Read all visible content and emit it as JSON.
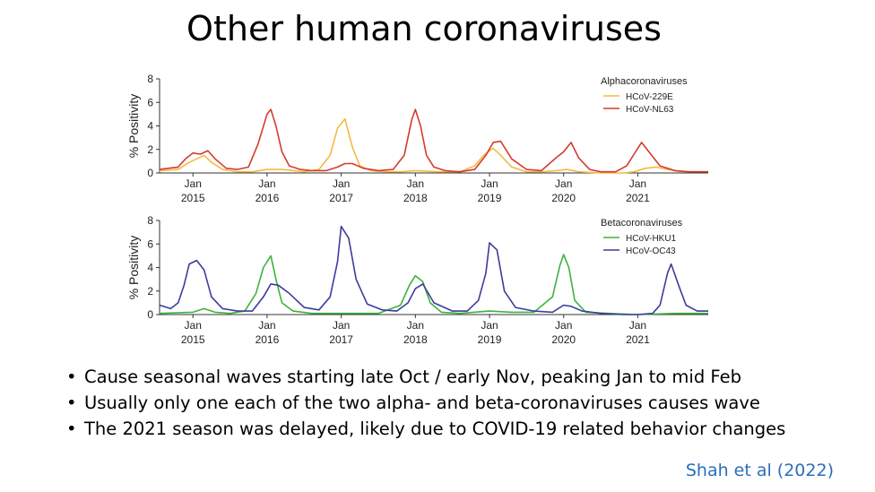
{
  "title": "Other human coronaviruses",
  "bullets": [
    "Cause seasonal waves starting late Oct / early Nov, peaking Jan to mid Feb",
    "Usually only one each of the two alpha- and beta-coronaviruses causes wave",
    "The 2021 season was delayed, likely due to COVID-19 related behavior changes"
  ],
  "citation": "Shah et al (2022)",
  "chart_data": [
    {
      "type": "line",
      "title": "",
      "legend_title": "Alphacoronaviruses",
      "legend_position": "top-right",
      "xlabel": "",
      "ylabel": "% Positivity",
      "xlim": [
        2014.55,
        2021.95
      ],
      "ylim": [
        0,
        8
      ],
      "yticks": [
        0,
        2,
        4,
        6,
        8
      ],
      "xticks": [
        {
          "x": 2015.0,
          "top": "Jan",
          "bottom": "2015"
        },
        {
          "x": 2016.0,
          "top": "Jan",
          "bottom": "2016"
        },
        {
          "x": 2017.0,
          "top": "Jan",
          "bottom": "2017"
        },
        {
          "x": 2018.0,
          "top": "Jan",
          "bottom": "2018"
        },
        {
          "x": 2019.0,
          "top": "Jan",
          "bottom": "2019"
        },
        {
          "x": 2020.0,
          "top": "Jan",
          "bottom": "2020"
        },
        {
          "x": 2021.0,
          "top": "Jan",
          "bottom": "2021"
        }
      ],
      "grid": false,
      "series": [
        {
          "name": "HCoV-229E",
          "color": "#f5b942",
          "x": [
            2014.55,
            2014.8,
            2014.95,
            2015.05,
            2015.15,
            2015.25,
            2015.4,
            2015.6,
            2015.8,
            2016.0,
            2016.2,
            2016.5,
            2016.7,
            2016.85,
            2016.95,
            2017.05,
            2017.15,
            2017.25,
            2017.4,
            2017.6,
            2017.8,
            2018.0,
            2018.3,
            2018.6,
            2018.8,
            2018.92,
            2019.05,
            2019.15,
            2019.3,
            2019.5,
            2019.7,
            2019.9,
            2020.05,
            2020.2,
            2020.5,
            2020.8,
            2020.95,
            2021.1,
            2021.25,
            2021.4,
            2021.6,
            2021.8,
            2021.95
          ],
          "y": [
            0.2,
            0.3,
            0.9,
            1.2,
            1.5,
            0.9,
            0.3,
            0.1,
            0.1,
            0.3,
            0.3,
            0.1,
            0.3,
            1.5,
            3.8,
            4.6,
            2.2,
            0.6,
            0.2,
            0.1,
            0.1,
            0.2,
            0.1,
            0.1,
            0.6,
            1.5,
            2.1,
            1.5,
            0.5,
            0.1,
            0.1,
            0.2,
            0.3,
            0.1,
            0.0,
            0.0,
            0.1,
            0.4,
            0.5,
            0.3,
            0.1,
            0.1,
            0.1
          ]
        },
        {
          "name": "HCoV-NL63",
          "color": "#d63a2e",
          "x": [
            2014.55,
            2014.8,
            2014.9,
            2015.0,
            2015.1,
            2015.2,
            2015.3,
            2015.45,
            2015.6,
            2015.75,
            2015.88,
            2016.0,
            2016.05,
            2016.12,
            2016.2,
            2016.3,
            2016.45,
            2016.6,
            2016.8,
            2016.95,
            2017.05,
            2017.15,
            2017.3,
            2017.5,
            2017.7,
            2017.85,
            2017.95,
            2018.0,
            2018.07,
            2018.15,
            2018.25,
            2018.4,
            2018.6,
            2018.8,
            2018.95,
            2019.05,
            2019.15,
            2019.3,
            2019.5,
            2019.7,
            2019.9,
            2020.0,
            2020.1,
            2020.2,
            2020.35,
            2020.5,
            2020.7,
            2020.85,
            2020.95,
            2021.05,
            2021.15,
            2021.3,
            2021.5,
            2021.7,
            2021.95
          ],
          "y": [
            0.3,
            0.5,
            1.2,
            1.7,
            1.6,
            1.9,
            1.2,
            0.4,
            0.3,
            0.5,
            2.5,
            5.0,
            5.4,
            4.0,
            1.8,
            0.6,
            0.3,
            0.2,
            0.2,
            0.5,
            0.8,
            0.8,
            0.4,
            0.2,
            0.3,
            1.5,
            4.5,
            5.4,
            4.0,
            1.5,
            0.5,
            0.2,
            0.1,
            0.3,
            1.5,
            2.6,
            2.7,
            1.2,
            0.3,
            0.2,
            1.3,
            1.8,
            2.6,
            1.3,
            0.3,
            0.1,
            0.1,
            0.6,
            1.6,
            2.6,
            1.8,
            0.6,
            0.2,
            0.1,
            0.1
          ]
        }
      ]
    },
    {
      "type": "line",
      "title": "",
      "legend_title": "Betacoronaviruses",
      "legend_position": "top-right",
      "xlabel": "",
      "ylabel": "% Positivity",
      "xlim": [
        2014.55,
        2021.95
      ],
      "ylim": [
        0,
        8
      ],
      "yticks": [
        0,
        2,
        4,
        6,
        8
      ],
      "xticks": [
        {
          "x": 2015.0,
          "top": "Jan",
          "bottom": "2015"
        },
        {
          "x": 2016.0,
          "top": "Jan",
          "bottom": "2016"
        },
        {
          "x": 2017.0,
          "top": "Jan",
          "bottom": "2017"
        },
        {
          "x": 2018.0,
          "top": "Jan",
          "bottom": "2018"
        },
        {
          "x": 2019.0,
          "top": "Jan",
          "bottom": "2019"
        },
        {
          "x": 2020.0,
          "top": "Jan",
          "bottom": "2020"
        },
        {
          "x": 2021.0,
          "top": "Jan",
          "bottom": "2021"
        }
      ],
      "grid": false,
      "series": [
        {
          "name": "HCoV-HKU1",
          "color": "#3db33d",
          "x": [
            2014.55,
            2015.0,
            2015.15,
            2015.3,
            2015.5,
            2015.7,
            2015.85,
            2015.95,
            2016.05,
            2016.12,
            2016.2,
            2016.35,
            2016.6,
            2017.0,
            2017.5,
            2017.8,
            2017.92,
            2018.0,
            2018.1,
            2018.2,
            2018.35,
            2018.6,
            2019.0,
            2019.3,
            2019.6,
            2019.85,
            2019.95,
            2020.0,
            2020.07,
            2020.15,
            2020.3,
            2020.6,
            2021.0,
            2021.5,
            2021.95
          ],
          "y": [
            0.1,
            0.2,
            0.5,
            0.2,
            0.1,
            0.3,
            1.8,
            4.0,
            5.0,
            3.0,
            1.0,
            0.3,
            0.1,
            0.1,
            0.1,
            0.8,
            2.5,
            3.3,
            2.8,
            1.0,
            0.2,
            0.1,
            0.3,
            0.2,
            0.2,
            1.5,
            4.2,
            5.1,
            4.0,
            1.2,
            0.2,
            0.1,
            0.0,
            0.1,
            0.1
          ]
        },
        {
          "name": "HCoV-OC43",
          "color": "#3c3c9e",
          "x": [
            2014.55,
            2014.7,
            2014.8,
            2014.88,
            2014.95,
            2015.05,
            2015.15,
            2015.25,
            2015.4,
            2015.6,
            2015.8,
            2015.95,
            2016.05,
            2016.15,
            2016.3,
            2016.5,
            2016.7,
            2016.85,
            2016.95,
            2017.0,
            2017.1,
            2017.2,
            2017.35,
            2017.55,
            2017.75,
            2017.9,
            2018.0,
            2018.1,
            2018.25,
            2018.5,
            2018.7,
            2018.85,
            2018.95,
            2019.0,
            2019.1,
            2019.2,
            2019.35,
            2019.6,
            2019.85,
            2020.0,
            2020.1,
            2020.25,
            2020.5,
            2020.8,
            2021.0,
            2021.2,
            2021.3,
            2021.4,
            2021.45,
            2021.55,
            2021.65,
            2021.8,
            2021.95
          ],
          "y": [
            0.8,
            0.5,
            1.0,
            2.5,
            4.3,
            4.6,
            3.8,
            1.5,
            0.5,
            0.3,
            0.3,
            1.5,
            2.6,
            2.5,
            1.8,
            0.6,
            0.4,
            1.5,
            4.5,
            7.5,
            6.5,
            3.0,
            0.9,
            0.4,
            0.3,
            1.0,
            2.2,
            2.6,
            1.0,
            0.3,
            0.3,
            1.2,
            3.5,
            6.1,
            5.5,
            2.0,
            0.6,
            0.3,
            0.2,
            0.8,
            0.7,
            0.3,
            0.1,
            0.0,
            0.0,
            0.1,
            0.8,
            3.5,
            4.3,
            2.5,
            0.8,
            0.3,
            0.3
          ]
        }
      ]
    }
  ]
}
